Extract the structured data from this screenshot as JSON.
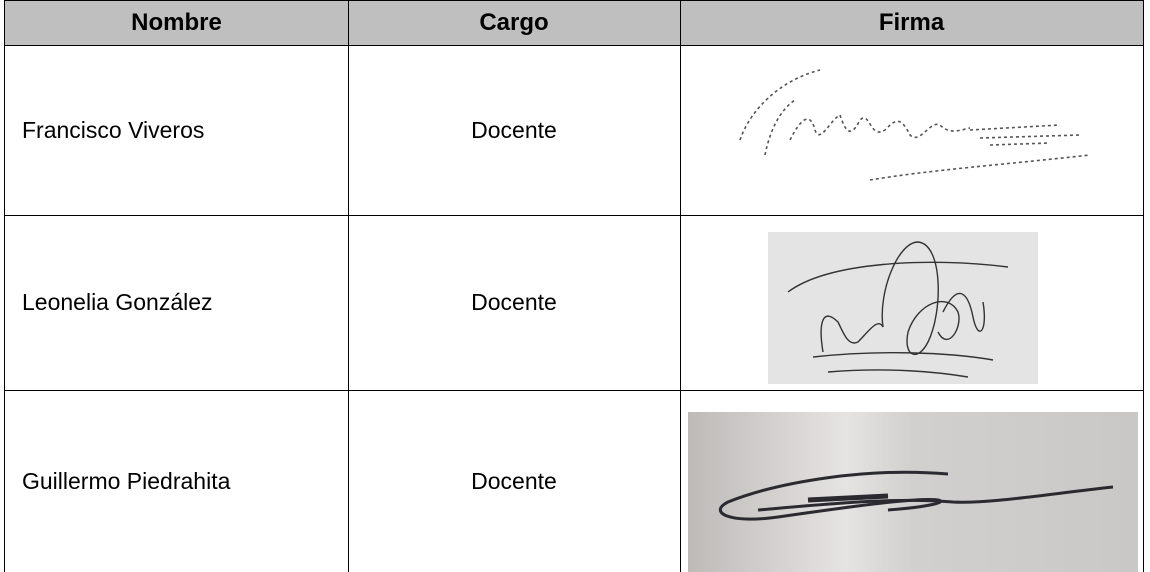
{
  "table": {
    "header": [
      "Nombre",
      "Cargo",
      "Firma"
    ],
    "rows": [
      [
        "Francisco Viveros",
        "Docente"
      ],
      [
        "Leonelia González",
        "Docente"
      ],
      [
        "Guillermo Piedrahita",
        "Docente"
      ]
    ]
  }
}
